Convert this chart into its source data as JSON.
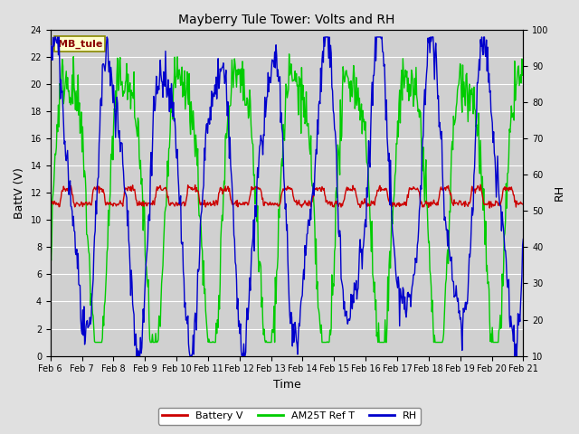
{
  "title": "Mayberry Tule Tower: Volts and RH",
  "xlabel": "Time",
  "ylabel_left": "BattV (V)",
  "ylabel_right": "RH",
  "station_label": "MB_tule",
  "ylim_left": [
    0,
    24
  ],
  "ylim_right": [
    10,
    100
  ],
  "yticks_left": [
    0,
    2,
    4,
    6,
    8,
    10,
    12,
    14,
    16,
    18,
    20,
    22,
    24
  ],
  "yticks_right": [
    10,
    20,
    30,
    40,
    50,
    60,
    70,
    80,
    90,
    100
  ],
  "xtick_labels": [
    "Feb 6",
    "Feb 7",
    "Feb 8",
    "Feb 9",
    "Feb 10",
    "Feb 11",
    "Feb 12",
    "Feb 13",
    "Feb 14",
    "Feb 15",
    "Feb 16",
    "Feb 17",
    "Feb 18",
    "Feb 19",
    "Feb 20",
    "Feb 21"
  ],
  "legend_labels": [
    "Battery V",
    "AM25T Ref T",
    "RH"
  ],
  "legend_colors": [
    "#cc0000",
    "#00cc00",
    "#0000cc"
  ],
  "bg_color": "#e0e0e0",
  "plot_bg_color": "#d0d0d0",
  "grid_color": "#ffffff",
  "line_width": 1.0
}
